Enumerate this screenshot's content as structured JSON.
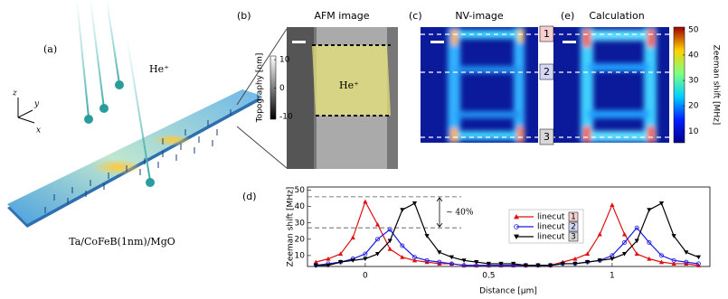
{
  "panel_a": {
    "label": "(a)",
    "ion": "He⁺",
    "axis_z": "z",
    "axis_y": "y",
    "axis_x": "x",
    "stack": "Ta/CoFeB(1nm)/MgO"
  },
  "panel_b": {
    "label": "(b)",
    "title": "AFM image",
    "ion": "He⁺",
    "colorbar_label": "Topography [nm]",
    "colorbar_lim": [
      -11,
      11.3
    ],
    "colorbar_ticks": [
      10,
      0,
      -10
    ]
  },
  "panel_c": {
    "label": "(c)",
    "title": "NV-image",
    "linecuts": [
      "1",
      "2",
      "3"
    ]
  },
  "panel_e": {
    "label": "(e)",
    "title": "Calculation",
    "colorbar_label": "Zeeman shift [MHz]",
    "colorbar_lim": [
      5.5,
      51
    ],
    "colorbar_ticks": [
      10,
      20,
      30,
      40,
      50
    ]
  },
  "chart_data": {
    "type": "line",
    "label": "(d)",
    "x_label": "Distance [µm]",
    "y_label": "Zeeman shift [MHz]",
    "annotation": "∼ 40%",
    "reference_lines": [
      46,
      27
    ],
    "xlim": [
      -0.234,
      1.396
    ],
    "ylim": [
      3.3,
      52
    ],
    "xticks": [
      0,
      0.5,
      1
    ],
    "yticks": [
      10,
      20,
      30,
      40,
      50
    ],
    "x": [
      -0.2,
      -0.15,
      -0.1,
      -0.05,
      0,
      0.05,
      0.1,
      0.15,
      0.2,
      0.25,
      0.3,
      0.35,
      0.4,
      0.45,
      0.5,
      0.55,
      0.6,
      0.65,
      0.7,
      0.75,
      0.8,
      0.85,
      0.9,
      0.95,
      1,
      1.05,
      1.1,
      1.15,
      1.2,
      1.25,
      1.3,
      1.35
    ],
    "series": [
      {
        "name": "linecut",
        "box": "1",
        "box_color": "#f6d0d0",
        "marker": "triangle",
        "color": "#e01010",
        "values": [
          6,
          8,
          11,
          21,
          43,
          29,
          14,
          9,
          7,
          6,
          5,
          5,
          4,
          4,
          4,
          4,
          4,
          4,
          4,
          4,
          6,
          8,
          11,
          23,
          41,
          23,
          11,
          8,
          6,
          5,
          5,
          4
        ]
      },
      {
        "name": "linecut",
        "box": "2",
        "box_color": "#d4d8f6",
        "marker": "circle",
        "color": "#1a1ae0",
        "values": [
          4,
          5,
          6,
          8,
          11,
          20,
          26,
          16,
          9,
          7,
          6,
          5,
          4,
          4,
          4,
          4,
          4,
          4,
          4,
          4,
          5,
          5,
          6,
          7,
          10,
          18,
          27,
          18,
          10,
          7,
          6,
          5
        ]
      },
      {
        "name": "linecut",
        "box": "3",
        "box_color": "#d8d8d8",
        "marker": "triangle-down",
        "color": "#000000",
        "values": [
          4,
          4,
          6,
          7,
          8,
          11,
          19,
          38,
          42,
          22,
          12,
          9,
          7,
          6,
          5,
          5,
          5,
          4,
          4,
          4,
          5,
          5,
          6,
          7,
          8,
          11,
          19,
          38,
          42,
          22,
          12,
          9
        ]
      }
    ]
  }
}
